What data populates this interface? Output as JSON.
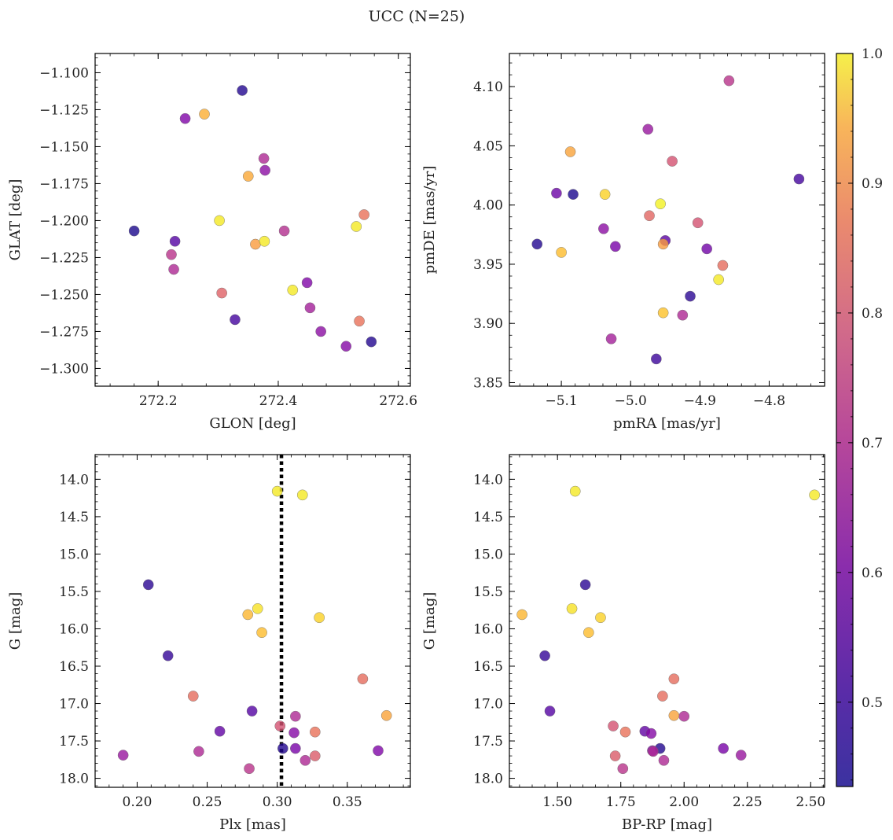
{
  "figure": {
    "title": "UCC (N=25)"
  },
  "colorbar": {
    "vmin": 0.435,
    "vmax": 1.0,
    "ticks": [
      0.5,
      0.6,
      0.7,
      0.8,
      0.9,
      1.0
    ],
    "tick_labels": [
      "0.5",
      "0.6",
      "0.7",
      "0.8",
      "0.9",
      "1.0"
    ],
    "colormap": "plasma"
  },
  "chart_data": [
    {
      "type": "scatter",
      "id": "glon-glat",
      "xlabel": "GLON [deg]",
      "ylabel": "GLAT [deg]",
      "xlim": [
        272.095,
        272.62
      ],
      "ylim": [
        -1.312,
        -1.087
      ],
      "y_inverted": false,
      "xticks": [
        272.2,
        272.4,
        272.6
      ],
      "xtick_labels": [
        "272.2",
        "272.4",
        "272.6"
      ],
      "yticks": [
        -1.3,
        -1.275,
        -1.25,
        -1.225,
        -1.2,
        -1.175,
        -1.15,
        -1.125,
        -1.1
      ],
      "ytick_labels": [
        "−1.300",
        "−1.275",
        "−1.250",
        "−1.225",
        "−1.200",
        "−1.175",
        "−1.150",
        "−1.125",
        "−1.100"
      ],
      "points": [
        {
          "x": 272.16,
          "y": -1.207,
          "c": 0.45
        },
        {
          "x": 272.34,
          "y": -1.112,
          "c": 0.46
        },
        {
          "x": 272.245,
          "y": -1.131,
          "c": 0.58
        },
        {
          "x": 272.277,
          "y": -1.128,
          "c": 0.9
        },
        {
          "x": 272.376,
          "y": -1.158,
          "c": 0.66
        },
        {
          "x": 272.378,
          "y": -1.166,
          "c": 0.6
        },
        {
          "x": 272.35,
          "y": -1.17,
          "c": 0.89
        },
        {
          "x": 272.302,
          "y": -1.2,
          "c": 0.98
        },
        {
          "x": 272.228,
          "y": -1.214,
          "c": 0.52
        },
        {
          "x": 272.222,
          "y": -1.223,
          "c": 0.68
        },
        {
          "x": 272.226,
          "y": -1.233,
          "c": 0.66
        },
        {
          "x": 272.362,
          "y": -1.216,
          "c": 0.87
        },
        {
          "x": 272.377,
          "y": -1.214,
          "c": 0.98
        },
        {
          "x": 272.41,
          "y": -1.207,
          "c": 0.67
        },
        {
          "x": 272.53,
          "y": -1.204,
          "c": 0.98
        },
        {
          "x": 272.543,
          "y": -1.196,
          "c": 0.8
        },
        {
          "x": 272.306,
          "y": -1.249,
          "c": 0.77
        },
        {
          "x": 272.424,
          "y": -1.247,
          "c": 0.98
        },
        {
          "x": 272.448,
          "y": -1.242,
          "c": 0.58
        },
        {
          "x": 272.328,
          "y": -1.267,
          "c": 0.5
        },
        {
          "x": 272.453,
          "y": -1.259,
          "c": 0.64
        },
        {
          "x": 272.471,
          "y": -1.275,
          "c": 0.6
        },
        {
          "x": 272.535,
          "y": -1.268,
          "c": 0.8
        },
        {
          "x": 272.513,
          "y": -1.285,
          "c": 0.59
        },
        {
          "x": 272.555,
          "y": -1.282,
          "c": 0.46
        }
      ]
    },
    {
      "type": "scatter",
      "id": "pmra-pmde",
      "xlabel": "pmRA [mas/yr]",
      "ylabel": "pmDE [mas/yr]",
      "xlim": [
        -5.175,
        -4.72
      ],
      "ylim": [
        3.847,
        4.128
      ],
      "y_inverted": false,
      "xticks": [
        -5.1,
        -5.0,
        -4.9,
        -4.8
      ],
      "xtick_labels": [
        "−5.1",
        "−5.0",
        "−4.9",
        "−4.8"
      ],
      "yticks": [
        3.85,
        3.9,
        3.95,
        4.0,
        4.05,
        4.1
      ],
      "ytick_labels": [
        "3.85",
        "3.90",
        "3.95",
        "4.00",
        "4.05",
        "4.10"
      ],
      "points": [
        {
          "x": -4.858,
          "y": 4.105,
          "c": 0.68
        },
        {
          "x": -4.975,
          "y": 4.064,
          "c": 0.62
        },
        {
          "x": -5.087,
          "y": 4.045,
          "c": 0.88
        },
        {
          "x": -4.94,
          "y": 4.037,
          "c": 0.74
        },
        {
          "x": -4.757,
          "y": 4.022,
          "c": 0.5
        },
        {
          "x": -5.107,
          "y": 4.01,
          "c": 0.55
        },
        {
          "x": -5.083,
          "y": 4.009,
          "c": 0.45
        },
        {
          "x": -5.037,
          "y": 4.009,
          "c": 0.95
        },
        {
          "x": -4.957,
          "y": 4.001,
          "c": 0.99
        },
        {
          "x": -4.973,
          "y": 3.991,
          "c": 0.78
        },
        {
          "x": -4.903,
          "y": 3.985,
          "c": 0.74
        },
        {
          "x": -5.039,
          "y": 3.98,
          "c": 0.6
        },
        {
          "x": -4.95,
          "y": 3.97,
          "c": 0.53
        },
        {
          "x": -5.135,
          "y": 3.967,
          "c": 0.46
        },
        {
          "x": -4.953,
          "y": 3.967,
          "c": 0.87
        },
        {
          "x": -5.022,
          "y": 3.965,
          "c": 0.57
        },
        {
          "x": -4.89,
          "y": 3.963,
          "c": 0.56
        },
        {
          "x": -5.1,
          "y": 3.96,
          "c": 0.92
        },
        {
          "x": -4.867,
          "y": 3.949,
          "c": 0.79
        },
        {
          "x": -4.873,
          "y": 3.937,
          "c": 0.98
        },
        {
          "x": -4.914,
          "y": 3.923,
          "c": 0.47
        },
        {
          "x": -4.953,
          "y": 3.909,
          "c": 0.93
        },
        {
          "x": -4.925,
          "y": 3.907,
          "c": 0.66
        },
        {
          "x": -5.028,
          "y": 3.887,
          "c": 0.64
        },
        {
          "x": -4.963,
          "y": 3.87,
          "c": 0.49
        }
      ]
    },
    {
      "type": "scatter",
      "id": "plx-g",
      "xlabel": "Plx [mas]",
      "ylabel": "G [mag]",
      "xlim": [
        0.17,
        0.395
      ],
      "ylim": [
        13.67,
        18.12
      ],
      "y_inverted": true,
      "vline": {
        "x": 0.303,
        "style": "dotted"
      },
      "xticks": [
        0.2,
        0.25,
        0.3,
        0.35
      ],
      "xtick_labels": [
        "0.20",
        "0.25",
        "0.30",
        "0.35"
      ],
      "yticks": [
        14.0,
        14.5,
        15.0,
        15.5,
        16.0,
        16.5,
        17.0,
        17.5,
        18.0
      ],
      "ytick_labels": [
        "14.0",
        "14.5",
        "15.0",
        "15.5",
        "16.0",
        "16.5",
        "17.0",
        "17.5",
        "18.0"
      ],
      "points": [
        {
          "x": 0.3,
          "y": 14.16,
          "c": 0.98
        },
        {
          "x": 0.318,
          "y": 14.21,
          "c": 0.98
        },
        {
          "x": 0.208,
          "y": 15.41,
          "c": 0.47
        },
        {
          "x": 0.286,
          "y": 15.73,
          "c": 0.97
        },
        {
          "x": 0.279,
          "y": 15.81,
          "c": 0.91
        },
        {
          "x": 0.33,
          "y": 15.85,
          "c": 0.95
        },
        {
          "x": 0.289,
          "y": 16.05,
          "c": 0.92
        },
        {
          "x": 0.222,
          "y": 16.36,
          "c": 0.48
        },
        {
          "x": 0.361,
          "y": 16.67,
          "c": 0.79
        },
        {
          "x": 0.24,
          "y": 16.9,
          "c": 0.79
        },
        {
          "x": 0.282,
          "y": 17.1,
          "c": 0.52
        },
        {
          "x": 0.378,
          "y": 17.16,
          "c": 0.88
        },
        {
          "x": 0.313,
          "y": 17.17,
          "c": 0.66
        },
        {
          "x": 0.302,
          "y": 17.3,
          "c": 0.74
        },
        {
          "x": 0.259,
          "y": 17.37,
          "c": 0.54
        },
        {
          "x": 0.327,
          "y": 17.38,
          "c": 0.8
        },
        {
          "x": 0.312,
          "y": 17.39,
          "c": 0.59
        },
        {
          "x": 0.304,
          "y": 17.6,
          "c": 0.46
        },
        {
          "x": 0.313,
          "y": 17.6,
          "c": 0.57
        },
        {
          "x": 0.372,
          "y": 17.63,
          "c": 0.58
        },
        {
          "x": 0.244,
          "y": 17.64,
          "c": 0.66
        },
        {
          "x": 0.19,
          "y": 17.69,
          "c": 0.62
        },
        {
          "x": 0.327,
          "y": 17.7,
          "c": 0.76
        },
        {
          "x": 0.32,
          "y": 17.76,
          "c": 0.66
        },
        {
          "x": 0.28,
          "y": 17.87,
          "c": 0.68
        }
      ]
    },
    {
      "type": "scatter",
      "id": "bprp-g",
      "xlabel": "BP-RP [mag]",
      "ylabel": "G [mag]",
      "xlim": [
        1.31,
        2.555
      ],
      "ylim": [
        13.67,
        18.12
      ],
      "y_inverted": true,
      "xticks": [
        1.5,
        1.75,
        2.0,
        2.25,
        2.5
      ],
      "xtick_labels": [
        "1.50",
        "1.75",
        "2.00",
        "2.25",
        "2.50"
      ],
      "yticks": [
        14.0,
        14.5,
        15.0,
        15.5,
        16.0,
        16.5,
        17.0,
        17.5,
        18.0
      ],
      "ytick_labels": [
        "14.0",
        "14.5",
        "15.0",
        "15.5",
        "16.0",
        "16.5",
        "17.0",
        "17.5",
        "18.0"
      ],
      "points": [
        {
          "x": 1.57,
          "y": 14.16,
          "c": 0.98
        },
        {
          "x": 2.515,
          "y": 14.21,
          "c": 0.98
        },
        {
          "x": 1.61,
          "y": 15.41,
          "c": 0.47
        },
        {
          "x": 1.557,
          "y": 15.73,
          "c": 0.97
        },
        {
          "x": 1.36,
          "y": 15.81,
          "c": 0.91
        },
        {
          "x": 1.67,
          "y": 15.85,
          "c": 0.95
        },
        {
          "x": 1.623,
          "y": 16.05,
          "c": 0.92
        },
        {
          "x": 1.45,
          "y": 16.36,
          "c": 0.48
        },
        {
          "x": 1.96,
          "y": 16.67,
          "c": 0.79
        },
        {
          "x": 1.915,
          "y": 16.9,
          "c": 0.79
        },
        {
          "x": 1.47,
          "y": 17.1,
          "c": 0.52
        },
        {
          "x": 1.96,
          "y": 17.16,
          "c": 0.88
        },
        {
          "x": 2.0,
          "y": 17.17,
          "c": 0.66
        },
        {
          "x": 1.72,
          "y": 17.3,
          "c": 0.74
        },
        {
          "x": 1.845,
          "y": 17.37,
          "c": 0.54
        },
        {
          "x": 1.768,
          "y": 17.38,
          "c": 0.8
        },
        {
          "x": 1.87,
          "y": 17.4,
          "c": 0.59
        },
        {
          "x": 1.905,
          "y": 17.6,
          "c": 0.46
        },
        {
          "x": 2.155,
          "y": 17.6,
          "c": 0.57
        },
        {
          "x": 1.875,
          "y": 17.63,
          "c": 0.58
        },
        {
          "x": 1.878,
          "y": 17.64,
          "c": 0.66
        },
        {
          "x": 2.225,
          "y": 17.69,
          "c": 0.62
        },
        {
          "x": 1.728,
          "y": 17.7,
          "c": 0.76
        },
        {
          "x": 1.92,
          "y": 17.76,
          "c": 0.66
        },
        {
          "x": 1.758,
          "y": 17.87,
          "c": 0.68
        }
      ]
    }
  ]
}
